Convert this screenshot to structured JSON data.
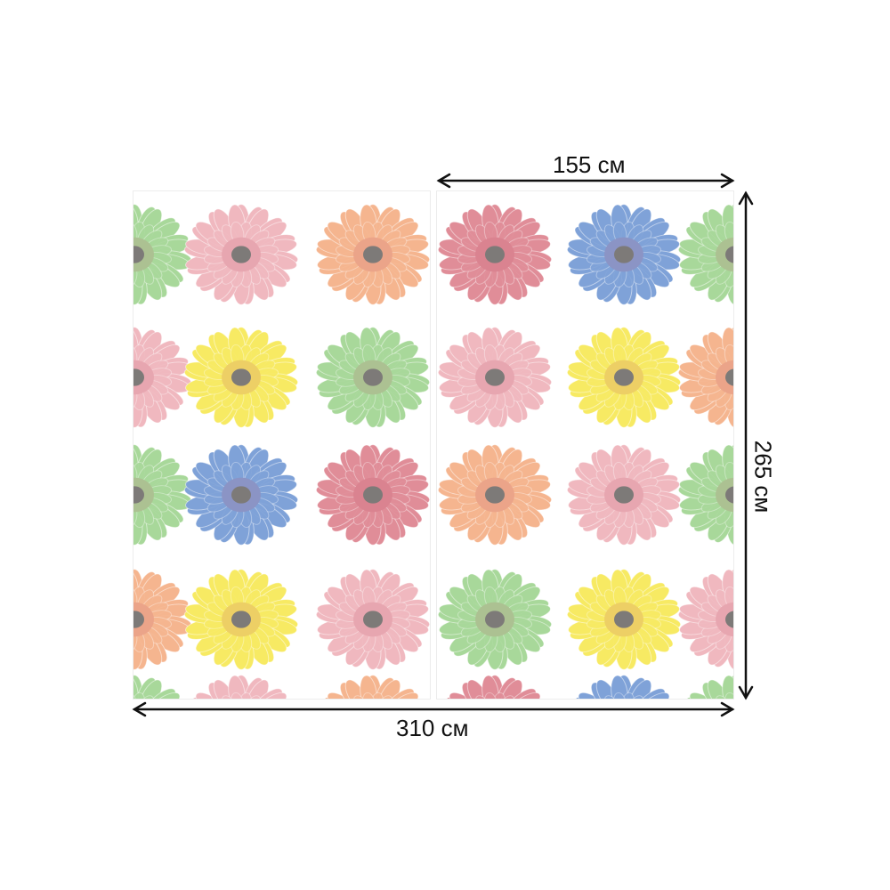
{
  "dimensions": {
    "panel_width": "155 см",
    "height": "265 см",
    "total_width": "310 см"
  },
  "flower_colors": {
    "pink": "#f0b8bf",
    "rose": "#e08d98",
    "orange": "#f5b58f",
    "yellow": "#f7ea63",
    "green": "#a8d89a",
    "blue": "#7fa2d8",
    "center": "#7d7a78"
  },
  "panels": [
    {
      "rows": [
        [
          "green",
          "pink",
          "orange"
        ],
        [
          "pink",
          "yellow",
          "green"
        ],
        [
          "green",
          "blue",
          "rose"
        ],
        [
          "orange",
          "yellow",
          "pink"
        ],
        [
          "green",
          "pink",
          "orange"
        ]
      ]
    },
    {
      "rows": [
        [
          "rose",
          "blue",
          "green"
        ],
        [
          "pink",
          "yellow",
          "orange"
        ],
        [
          "orange",
          "pink",
          "green"
        ],
        [
          "green",
          "yellow",
          "pink"
        ],
        [
          "rose",
          "blue",
          "green"
        ]
      ]
    }
  ]
}
